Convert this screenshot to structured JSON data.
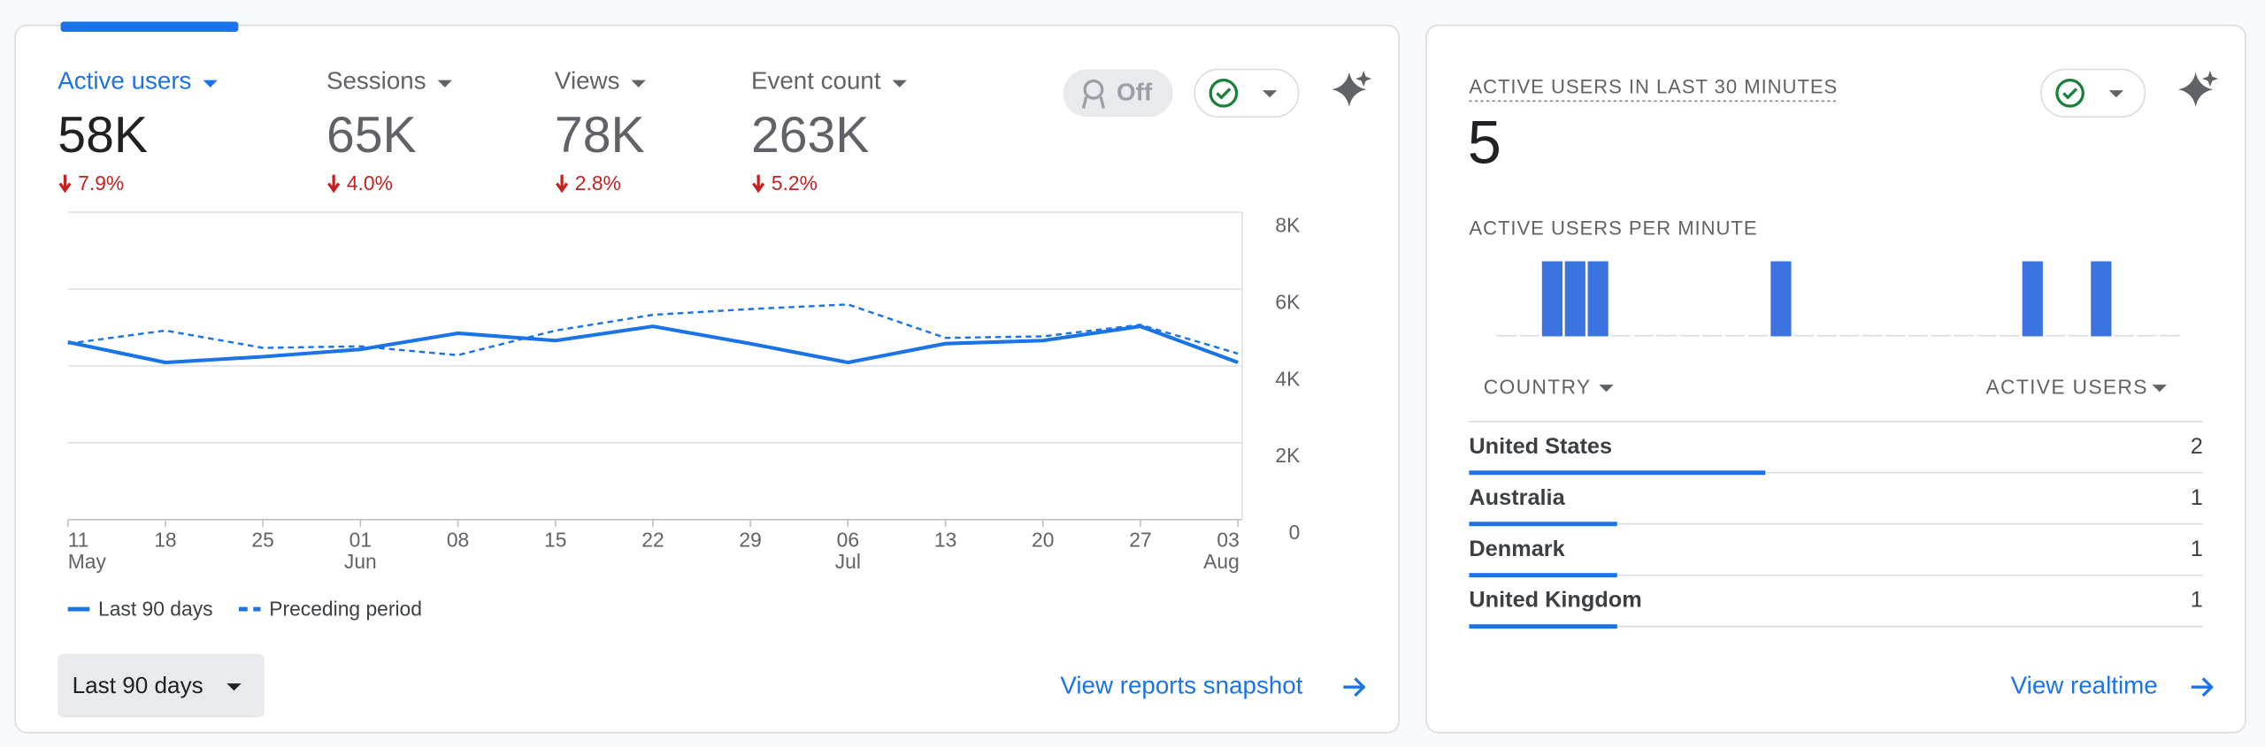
{
  "metrics": [
    {
      "label": "Active users",
      "value": "58K",
      "change": "7.9%"
    },
    {
      "label": "Sessions",
      "value": "65K",
      "change": "4.0%"
    },
    {
      "label": "Views",
      "value": "78K",
      "change": "2.8%"
    },
    {
      "label": "Event count",
      "value": "263K",
      "change": "5.2%"
    }
  ],
  "toggle": "Off",
  "chart_data": {
    "type": "line",
    "x_labels": [
      {
        "day": "11",
        "month": "May"
      },
      {
        "day": "18"
      },
      {
        "day": "25"
      },
      {
        "day": "01",
        "month": "Jun"
      },
      {
        "day": "08"
      },
      {
        "day": "15"
      },
      {
        "day": "22"
      },
      {
        "day": "29"
      },
      {
        "day": "06",
        "month": "Jul"
      },
      {
        "day": "13"
      },
      {
        "day": "20"
      },
      {
        "day": "27"
      },
      {
        "day": "03",
        "month": "Aug"
      }
    ],
    "ylim": [
      0,
      8000
    ],
    "yticks": [
      0,
      {
        "value": 2000,
        "label": "2K"
      },
      {
        "value": 4000,
        "label": "4K"
      },
      {
        "value": 6000,
        "label": "6K"
      },
      {
        "value": 8000,
        "label": "8K"
      }
    ],
    "grid": true,
    "series": [
      {
        "name": "Last 90 days",
        "color": "#1a73e8",
        "dashed": false,
        "values": [
          4620,
          4090,
          4240,
          4430,
          4850,
          4660,
          5030,
          4580,
          4090,
          4580,
          4660,
          5030,
          4090
        ]
      },
      {
        "name": "Preceding period",
        "color": "#1a73e8",
        "dashed": true,
        "values": [
          4580,
          4920,
          4470,
          4510,
          4280,
          4920,
          5330,
          5480,
          5600,
          4730,
          4770,
          5070,
          4320
        ]
      }
    ]
  },
  "date_range": "Last 90 days",
  "overview_link": "View reports snapshot",
  "realtime": {
    "title": "ACTIVE USERS IN LAST 30 MINUTES",
    "value": "5",
    "per_minute": {
      "title": "ACTIVE USERS PER MINUTE",
      "color": "#3b73e0",
      "values": [
        0,
        0,
        1,
        1,
        1,
        0,
        0,
        0,
        0,
        0,
        0,
        0,
        1,
        0,
        0,
        0,
        0,
        0,
        0,
        0,
        0,
        0,
        0,
        1,
        0,
        0,
        1,
        0,
        0,
        0
      ]
    },
    "table": {
      "columns": [
        "COUNTRY",
        "ACTIVE USERS"
      ],
      "rows": [
        {
          "country": "United States",
          "value": 2
        },
        {
          "country": "Australia",
          "value": 1
        },
        {
          "country": "Denmark",
          "value": 1
        },
        {
          "country": "United Kingdom",
          "value": 1
        }
      ]
    },
    "link": "View realtime"
  }
}
